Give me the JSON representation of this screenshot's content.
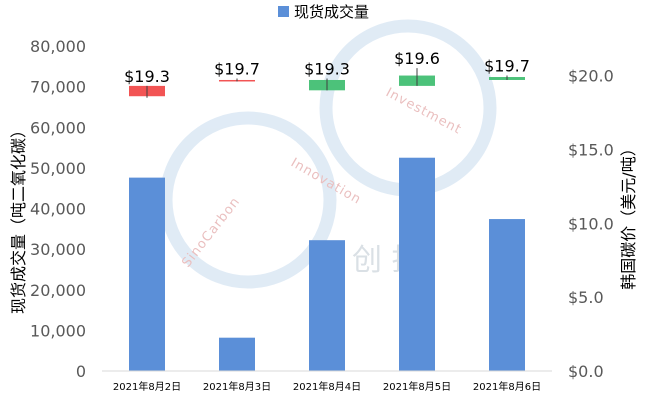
{
  "chart_data": {
    "type": "bar+candlestick",
    "legend": {
      "label": "现货成交量",
      "color": "#5b8fd8",
      "position": "top-center"
    },
    "categories": [
      "2021年8月2日",
      "2021年8月3日",
      "2021年8月4日",
      "2021年8月5日",
      "2021年8月6日"
    ],
    "volume": {
      "name": "现货成交量",
      "values": [
        47600,
        8200,
        32200,
        52500,
        37400
      ],
      "color": "#5b8fd8"
    },
    "price": {
      "labels": [
        "$19.3",
        "$19.7",
        "$19.3",
        "$19.6",
        "$19.7"
      ],
      "candles": [
        {
          "open": 19.3,
          "close": 18.6,
          "high": 19.3,
          "low": 18.5,
          "direction": "down"
        },
        {
          "open": 19.7,
          "close": 19.7,
          "high": 19.8,
          "low": 19.6,
          "direction": "down"
        },
        {
          "open": 19.0,
          "close": 19.7,
          "high": 19.8,
          "low": 19.0,
          "direction": "up"
        },
        {
          "open": 19.3,
          "close": 20.0,
          "high": 20.5,
          "low": 19.3,
          "direction": "up"
        },
        {
          "open": 19.7,
          "close": 19.9,
          "high": 20.0,
          "low": 19.7,
          "direction": "up"
        }
      ],
      "up_color": "#4cc27a",
      "down_color": "#f25454"
    },
    "y_left": {
      "label": "现货成交量（吨二氧化碳）",
      "ylim": [
        0,
        80000
      ],
      "ticks": [
        "0",
        "10,000",
        "20,000",
        "30,000",
        "40,000",
        "50,000",
        "60,000",
        "70,000",
        "80,000"
      ]
    },
    "y_right": {
      "label": "韩国碳价（美元/吨）",
      "ylim": [
        0,
        22
      ],
      "tick_values": [
        0,
        5,
        10,
        15,
        20
      ],
      "ticks": [
        "$0.0",
        "$5.0",
        "$10.0",
        "$15.0",
        "$20.0"
      ]
    },
    "grid": false
  },
  "watermark": {
    "text_left": "SinoCarbon",
    "text_mid": "Innovation",
    "text_right": "Investment",
    "chinese": "创  投",
    "color": "#cfe2f3"
  }
}
